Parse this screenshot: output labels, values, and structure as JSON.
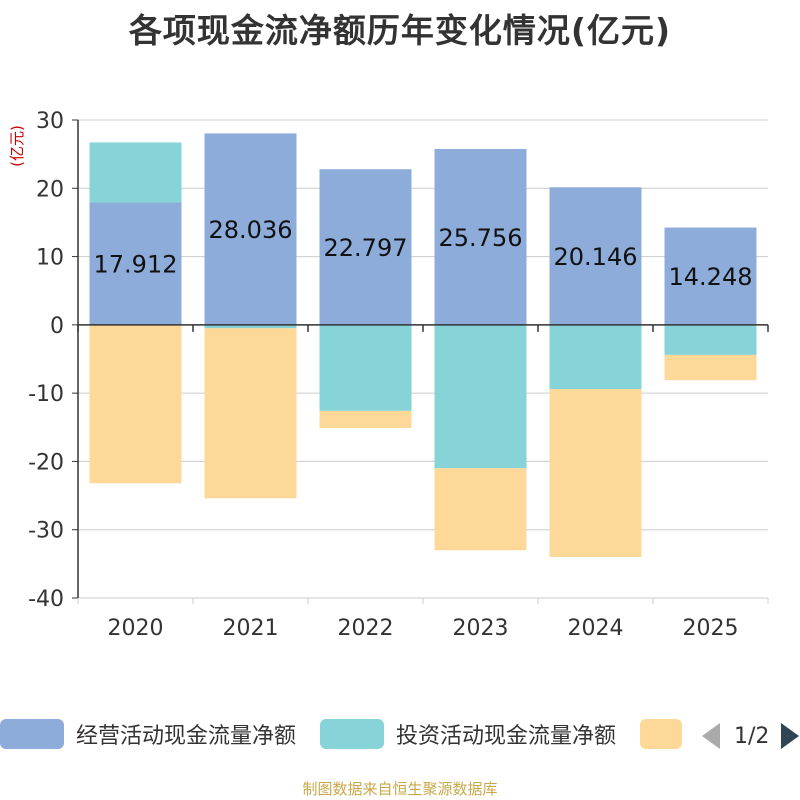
{
  "chart_data": {
    "type": "bar",
    "stacked": true,
    "title": "各项现金流净额历年变化情况(亿元)",
    "ylabel": "(亿元)",
    "xlabel": "",
    "ylim": [
      -40,
      30
    ],
    "yticks": [
      30,
      20,
      10,
      0,
      -10,
      -20,
      -30,
      -40
    ],
    "grid": true,
    "legend_position": "bottom",
    "categories": [
      "2020",
      "2021",
      "2022",
      "2023",
      "2024",
      "2025"
    ],
    "series": [
      {
        "name": "经营活动现金流量净额",
        "color": "#8dacda",
        "values": [
          17.912,
          28.036,
          22.797,
          25.756,
          20.146,
          14.248
        ],
        "data_labels": [
          "17.912",
          "28.036",
          "22.797",
          "25.756",
          "20.146",
          "14.248"
        ]
      },
      {
        "name": "投资活动现金流量净额",
        "color": "#86d4d7",
        "values": [
          8.8,
          -0.5,
          -12.6,
          -21.0,
          -9.4,
          -4.4
        ]
      },
      {
        "name": "",
        "color": "#fed898",
        "values": [
          -23.2,
          -24.9,
          -2.5,
          -12.0,
          -24.6,
          -3.7
        ]
      }
    ]
  },
  "legend": {
    "items": [
      {
        "label": "经营活动现金流量净额",
        "color": "#8dacda"
      },
      {
        "label": "投资活动现金流量净额",
        "color": "#86d4d7"
      },
      {
        "label": "",
        "color": "#fed898"
      }
    ],
    "pager_text": "1/2"
  },
  "source_note": "制图数据来自恒生聚源数据库"
}
